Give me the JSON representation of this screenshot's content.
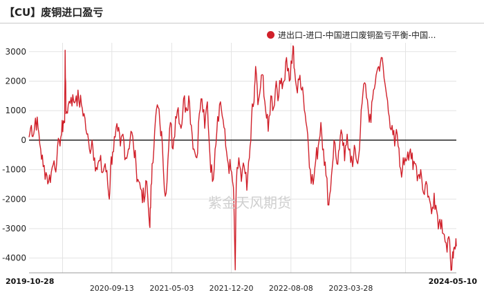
{
  "chart_data": {
    "type": "line",
    "title": "【CU】废铜进口盈亏",
    "watermark": "紫金天风期货",
    "legend_position": "top-right",
    "grid": true,
    "y_ticks": [
      3000,
      2000,
      1000,
      0,
      -1000,
      -2000,
      -3000,
      -4000
    ],
    "ylim": [
      -4500,
      3300
    ],
    "x_tick_labels": [
      {
        "label": "2019-10-28",
        "bold": true
      },
      {
        "label": "2020-09-13",
        "bold": false
      },
      {
        "label": "2021-05-03",
        "bold": false
      },
      {
        "label": "2021-12-20",
        "bold": false
      },
      {
        "label": "2022-08-08",
        "bold": false
      },
      {
        "label": "2023-03-28",
        "bold": false
      },
      {
        "label": "2024-05-10",
        "bold": true
      }
    ],
    "x_gridlines": [
      "2020-03-06",
      "2020-09-13",
      "2021-05-03",
      "2021-12-20",
      "2022-08-08",
      "2023-03-28",
      "2023-10-26"
    ],
    "xlim": [
      "2019-10-28",
      "2024-05-10"
    ],
    "series": [
      {
        "name": "进出口-进口-中国进口废铜盈亏平衡-中国...",
        "color": "#d0202a",
        "points": [
          [
            "2019-10-28",
            100
          ],
          [
            "2019-11-06",
            500
          ],
          [
            "2019-11-15",
            200
          ],
          [
            "2019-11-22",
            750
          ],
          [
            "2019-12-02",
            400
          ],
          [
            "2019-12-12",
            -300
          ],
          [
            "2019-12-22",
            -900
          ],
          [
            "2020-01-02",
            -1100
          ],
          [
            "2020-01-12",
            -1400
          ],
          [
            "2020-01-22",
            -1100
          ],
          [
            "2020-02-02",
            -700
          ],
          [
            "2020-02-12",
            -800
          ],
          [
            "2020-02-22",
            0
          ],
          [
            "2020-03-02",
            200
          ],
          [
            "2020-03-09",
            650
          ],
          [
            "2020-03-14",
            600
          ],
          [
            "2020-03-16",
            3050
          ],
          [
            "2020-03-19",
            900
          ],
          [
            "2020-03-28",
            1200
          ],
          [
            "2020-04-08",
            1450
          ],
          [
            "2020-04-18",
            1300
          ],
          [
            "2020-04-28",
            1500
          ],
          [
            "2020-05-08",
            1350
          ],
          [
            "2020-05-18",
            1200
          ],
          [
            "2020-05-28",
            900
          ],
          [
            "2020-06-08",
            200
          ],
          [
            "2020-06-18",
            -300
          ],
          [
            "2020-06-28",
            0
          ],
          [
            "2020-07-08",
            -600
          ],
          [
            "2020-07-18",
            -1000
          ],
          [
            "2020-07-28",
            -700
          ],
          [
            "2020-08-08",
            -1100
          ],
          [
            "2020-08-18",
            -800
          ],
          [
            "2020-08-28",
            -1500
          ],
          [
            "2020-09-03",
            -2000
          ],
          [
            "2020-09-08",
            -900
          ],
          [
            "2020-09-16",
            -400
          ],
          [
            "2020-09-26",
            100
          ],
          [
            "2020-10-06",
            300
          ],
          [
            "2020-10-16",
            -200
          ],
          [
            "2020-10-26",
            200
          ],
          [
            "2020-11-06",
            -600
          ],
          [
            "2020-11-16",
            -300
          ],
          [
            "2020-11-26",
            300
          ],
          [
            "2020-12-06",
            -200
          ],
          [
            "2020-12-16",
            -900
          ],
          [
            "2020-12-26",
            -1400
          ],
          [
            "2021-01-06",
            -1700
          ],
          [
            "2021-01-16",
            -2100
          ],
          [
            "2021-01-26",
            -1400
          ],
          [
            "2021-02-06",
            -2900
          ],
          [
            "2021-02-10",
            -2300
          ],
          [
            "2021-02-16",
            -800
          ],
          [
            "2021-02-26",
            300
          ],
          [
            "2021-03-08",
            1200
          ],
          [
            "2021-03-18",
            600
          ],
          [
            "2021-03-28",
            -200
          ],
          [
            "2021-04-08",
            -1900
          ],
          [
            "2021-04-18",
            -700
          ],
          [
            "2021-04-28",
            600
          ],
          [
            "2021-05-08",
            -300
          ],
          [
            "2021-05-18",
            800
          ],
          [
            "2021-05-28",
            1100
          ],
          [
            "2021-06-08",
            400
          ],
          [
            "2021-06-18",
            1400
          ],
          [
            "2021-06-28",
            1100
          ],
          [
            "2021-07-08",
            1500
          ],
          [
            "2021-07-18",
            500
          ],
          [
            "2021-07-28",
            -300
          ],
          [
            "2021-08-08",
            -600
          ],
          [
            "2021-08-18",
            900
          ],
          [
            "2021-08-28",
            1400
          ],
          [
            "2021-09-08",
            400
          ],
          [
            "2021-09-18",
            1300
          ],
          [
            "2021-09-28",
            -500
          ],
          [
            "2021-10-08",
            -1400
          ],
          [
            "2021-10-18",
            -300
          ],
          [
            "2021-10-28",
            800
          ],
          [
            "2021-11-08",
            1300
          ],
          [
            "2021-11-18",
            700
          ],
          [
            "2021-11-28",
            -200
          ],
          [
            "2021-12-08",
            -800
          ],
          [
            "2021-12-18",
            -1000
          ],
          [
            "2021-12-28",
            -1600
          ],
          [
            "2022-01-04",
            -4400
          ],
          [
            "2022-01-08",
            -1500
          ],
          [
            "2022-01-18",
            -600
          ],
          [
            "2022-01-28",
            -1400
          ],
          [
            "2022-02-08",
            -900
          ],
          [
            "2022-02-18",
            -1700
          ],
          [
            "2022-02-28",
            -600
          ],
          [
            "2022-03-08",
            700
          ],
          [
            "2022-03-18",
            1300
          ],
          [
            "2022-03-24",
            2500
          ],
          [
            "2022-04-02",
            1200
          ],
          [
            "2022-04-12",
            1800
          ],
          [
            "2022-04-22",
            2200
          ],
          [
            "2022-05-02",
            1000
          ],
          [
            "2022-05-12",
            300
          ],
          [
            "2022-05-22",
            1500
          ],
          [
            "2022-06-02",
            1100
          ],
          [
            "2022-06-12",
            2000
          ],
          [
            "2022-06-22",
            1500
          ],
          [
            "2022-07-02",
            2100
          ],
          [
            "2022-07-12",
            2000
          ],
          [
            "2022-07-22",
            2800
          ],
          [
            "2022-08-02",
            2000
          ],
          [
            "2022-08-12",
            2600
          ],
          [
            "2022-08-16",
            3200
          ],
          [
            "2022-08-22",
            2400
          ],
          [
            "2022-09-02",
            1600
          ],
          [
            "2022-09-12",
            2200
          ],
          [
            "2022-09-22",
            1800
          ],
          [
            "2022-10-02",
            900
          ],
          [
            "2022-10-12",
            200
          ],
          [
            "2022-10-22",
            -1000
          ],
          [
            "2022-11-02",
            -1500
          ],
          [
            "2022-11-12",
            -700
          ],
          [
            "2022-11-22",
            -200
          ],
          [
            "2022-12-02",
            600
          ],
          [
            "2022-12-12",
            -300
          ],
          [
            "2022-12-22",
            -1200
          ],
          [
            "2023-01-02",
            -2200
          ],
          [
            "2023-01-12",
            -1200
          ],
          [
            "2023-01-22",
            0
          ],
          [
            "2023-02-02",
            -800
          ],
          [
            "2023-02-12",
            -300
          ],
          [
            "2023-02-22",
            200
          ],
          [
            "2023-03-04",
            -700
          ],
          [
            "2023-03-14",
            200
          ],
          [
            "2023-03-24",
            -300
          ],
          [
            "2023-04-04",
            -900
          ],
          [
            "2023-04-14",
            -300
          ],
          [
            "2023-04-24",
            -800
          ],
          [
            "2023-05-04",
            300
          ],
          [
            "2023-05-14",
            1600
          ],
          [
            "2023-05-24",
            1900
          ],
          [
            "2023-06-04",
            1000
          ],
          [
            "2023-06-14",
            600
          ],
          [
            "2023-06-24",
            1700
          ],
          [
            "2023-07-04",
            2200
          ],
          [
            "2023-07-14",
            2500
          ],
          [
            "2023-07-24",
            2800
          ],
          [
            "2023-08-04",
            2100
          ],
          [
            "2023-08-14",
            1500
          ],
          [
            "2023-08-24",
            800
          ],
          [
            "2023-09-04",
            500
          ],
          [
            "2023-09-14",
            -200
          ],
          [
            "2023-09-24",
            200
          ],
          [
            "2023-10-04",
            -900
          ],
          [
            "2023-10-14",
            -1000
          ],
          [
            "2023-10-24",
            -600
          ],
          [
            "2023-11-04",
            -400
          ],
          [
            "2023-11-14",
            -300
          ],
          [
            "2023-11-24",
            -1000
          ],
          [
            "2023-12-04",
            -800
          ],
          [
            "2023-12-14",
            -1200
          ],
          [
            "2023-12-24",
            -1000
          ],
          [
            "2024-01-04",
            -1800
          ],
          [
            "2024-01-14",
            -1400
          ],
          [
            "2024-01-24",
            -1900
          ],
          [
            "2024-02-04",
            -2500
          ],
          [
            "2024-02-14",
            -1800
          ],
          [
            "2024-02-24",
            -2400
          ],
          [
            "2024-03-04",
            -2800
          ],
          [
            "2024-03-14",
            -2700
          ],
          [
            "2024-03-24",
            -3200
          ],
          [
            "2024-04-04",
            -3800
          ],
          [
            "2024-04-14",
            -3400
          ],
          [
            "2024-04-22",
            -4400
          ],
          [
            "2024-04-28",
            -4000
          ],
          [
            "2024-05-05",
            -3700
          ],
          [
            "2024-05-10",
            -3600
          ]
        ]
      }
    ]
  }
}
